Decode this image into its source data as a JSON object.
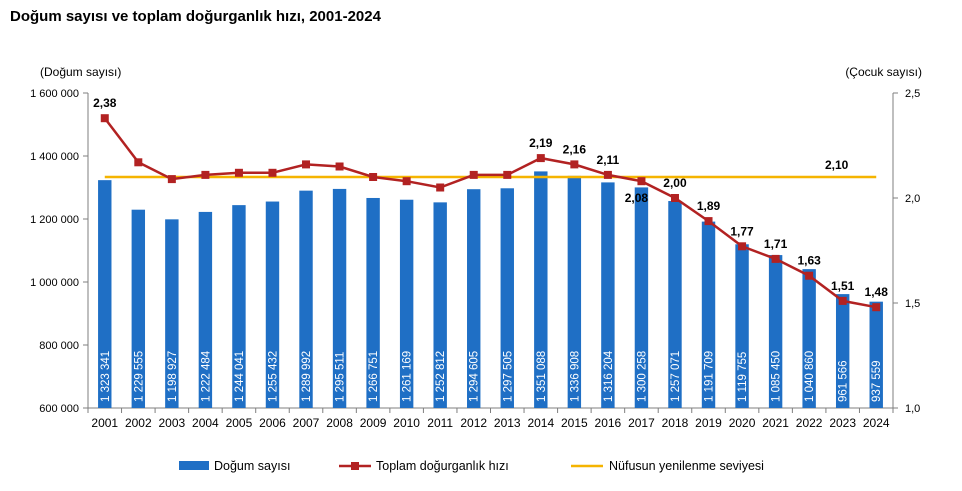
{
  "title": "Doğum sayısı ve toplam doğurganlık hızı, 2001-2024",
  "colors": {
    "bars": "#1f6fc5",
    "tfr": "#b22222",
    "replacement": "#f5b400",
    "axis": "#7f7f7f",
    "text": "#000000"
  },
  "chart_data": {
    "type": "bar",
    "categories": [
      "2001",
      "2002",
      "2003",
      "2004",
      "2005",
      "2006",
      "2007",
      "2008",
      "2009",
      "2010",
      "2011",
      "2012",
      "2013",
      "2014",
      "2015",
      "2016",
      "2017",
      "2018",
      "2019",
      "2020",
      "2021",
      "2022",
      "2023",
      "2024"
    ],
    "y_left_label": "(Doğum sayısı)",
    "y_right_label": "(Çocuk sayısı)",
    "y_left_lim": [
      600000,
      1600000
    ],
    "y_right_lim": [
      1.0,
      2.5
    ],
    "y_left_ticks": [
      {
        "value": 600000,
        "label": "600 000"
      },
      {
        "value": 800000,
        "label": "800 000"
      },
      {
        "value": 1000000,
        "label": "1 000 000"
      },
      {
        "value": 1200000,
        "label": "1 200 000"
      },
      {
        "value": 1400000,
        "label": "1 400 000"
      },
      {
        "value": 1600000,
        "label": "1 600 000"
      }
    ],
    "y_right_ticks": [
      {
        "value": 1.0,
        "label": "1,0"
      },
      {
        "value": 1.5,
        "label": "1,5"
      },
      {
        "value": 2.0,
        "label": "2,0"
      },
      {
        "value": 2.5,
        "label": "2,5"
      }
    ],
    "grid": false,
    "legend_position": "bottom",
    "series": [
      {
        "name": "Doğum sayısı",
        "type": "bar",
        "axis": "left",
        "values": [
          1323341,
          1229555,
          1198927,
          1222484,
          1244041,
          1255432,
          1289992,
          1295511,
          1266751,
          1261169,
          1252812,
          1294605,
          1297505,
          1351088,
          1336908,
          1316204,
          1300258,
          1257071,
          1191709,
          1119755,
          1085450,
          1040860,
          961566,
          937559
        ],
        "labels": [
          "1 323 341",
          "1 229 555",
          "1 198 927",
          "1 222 484",
          "1 244 041",
          "1 255 432",
          "1 289 992",
          "1 295 511",
          "1 266 751",
          "1 261 169",
          "1 252 812",
          "1 294 605",
          "1 297 505",
          "1 351 088",
          "1 336 908",
          "1 316 204",
          "1 300 258",
          "1 257 071",
          "1 191 709",
          "1 119 755",
          "1 085 450",
          "1 040 860",
          "961 566",
          "937 559"
        ]
      },
      {
        "name": "Toplam doğurganlık hızı",
        "type": "line",
        "axis": "right",
        "values": [
          2.38,
          2.17,
          2.09,
          2.11,
          2.12,
          2.12,
          2.16,
          2.15,
          2.1,
          2.08,
          2.05,
          2.11,
          2.11,
          2.19,
          2.16,
          2.11,
          2.08,
          2.0,
          1.89,
          1.77,
          1.71,
          1.63,
          1.51,
          1.48
        ],
        "point_labels": [
          "2,38",
          null,
          null,
          null,
          null,
          null,
          null,
          null,
          null,
          null,
          null,
          null,
          null,
          "2,19",
          "2,16",
          "2,11",
          "2,08",
          "2,00",
          "1,89",
          "1,77",
          "1,71",
          "1,63",
          "1,51",
          "1,48"
        ]
      },
      {
        "name": "Nüfusun yenilenme seviyesi",
        "type": "line",
        "axis": "right",
        "values": [
          2.1,
          2.1,
          2.1,
          2.1,
          2.1,
          2.1,
          2.1,
          2.1,
          2.1,
          2.1,
          2.1,
          2.1,
          2.1,
          2.1,
          2.1,
          2.1,
          2.1,
          2.1,
          2.1,
          2.1,
          2.1,
          2.1,
          2.1,
          2.1
        ],
        "end_label": "2,10"
      }
    ]
  }
}
